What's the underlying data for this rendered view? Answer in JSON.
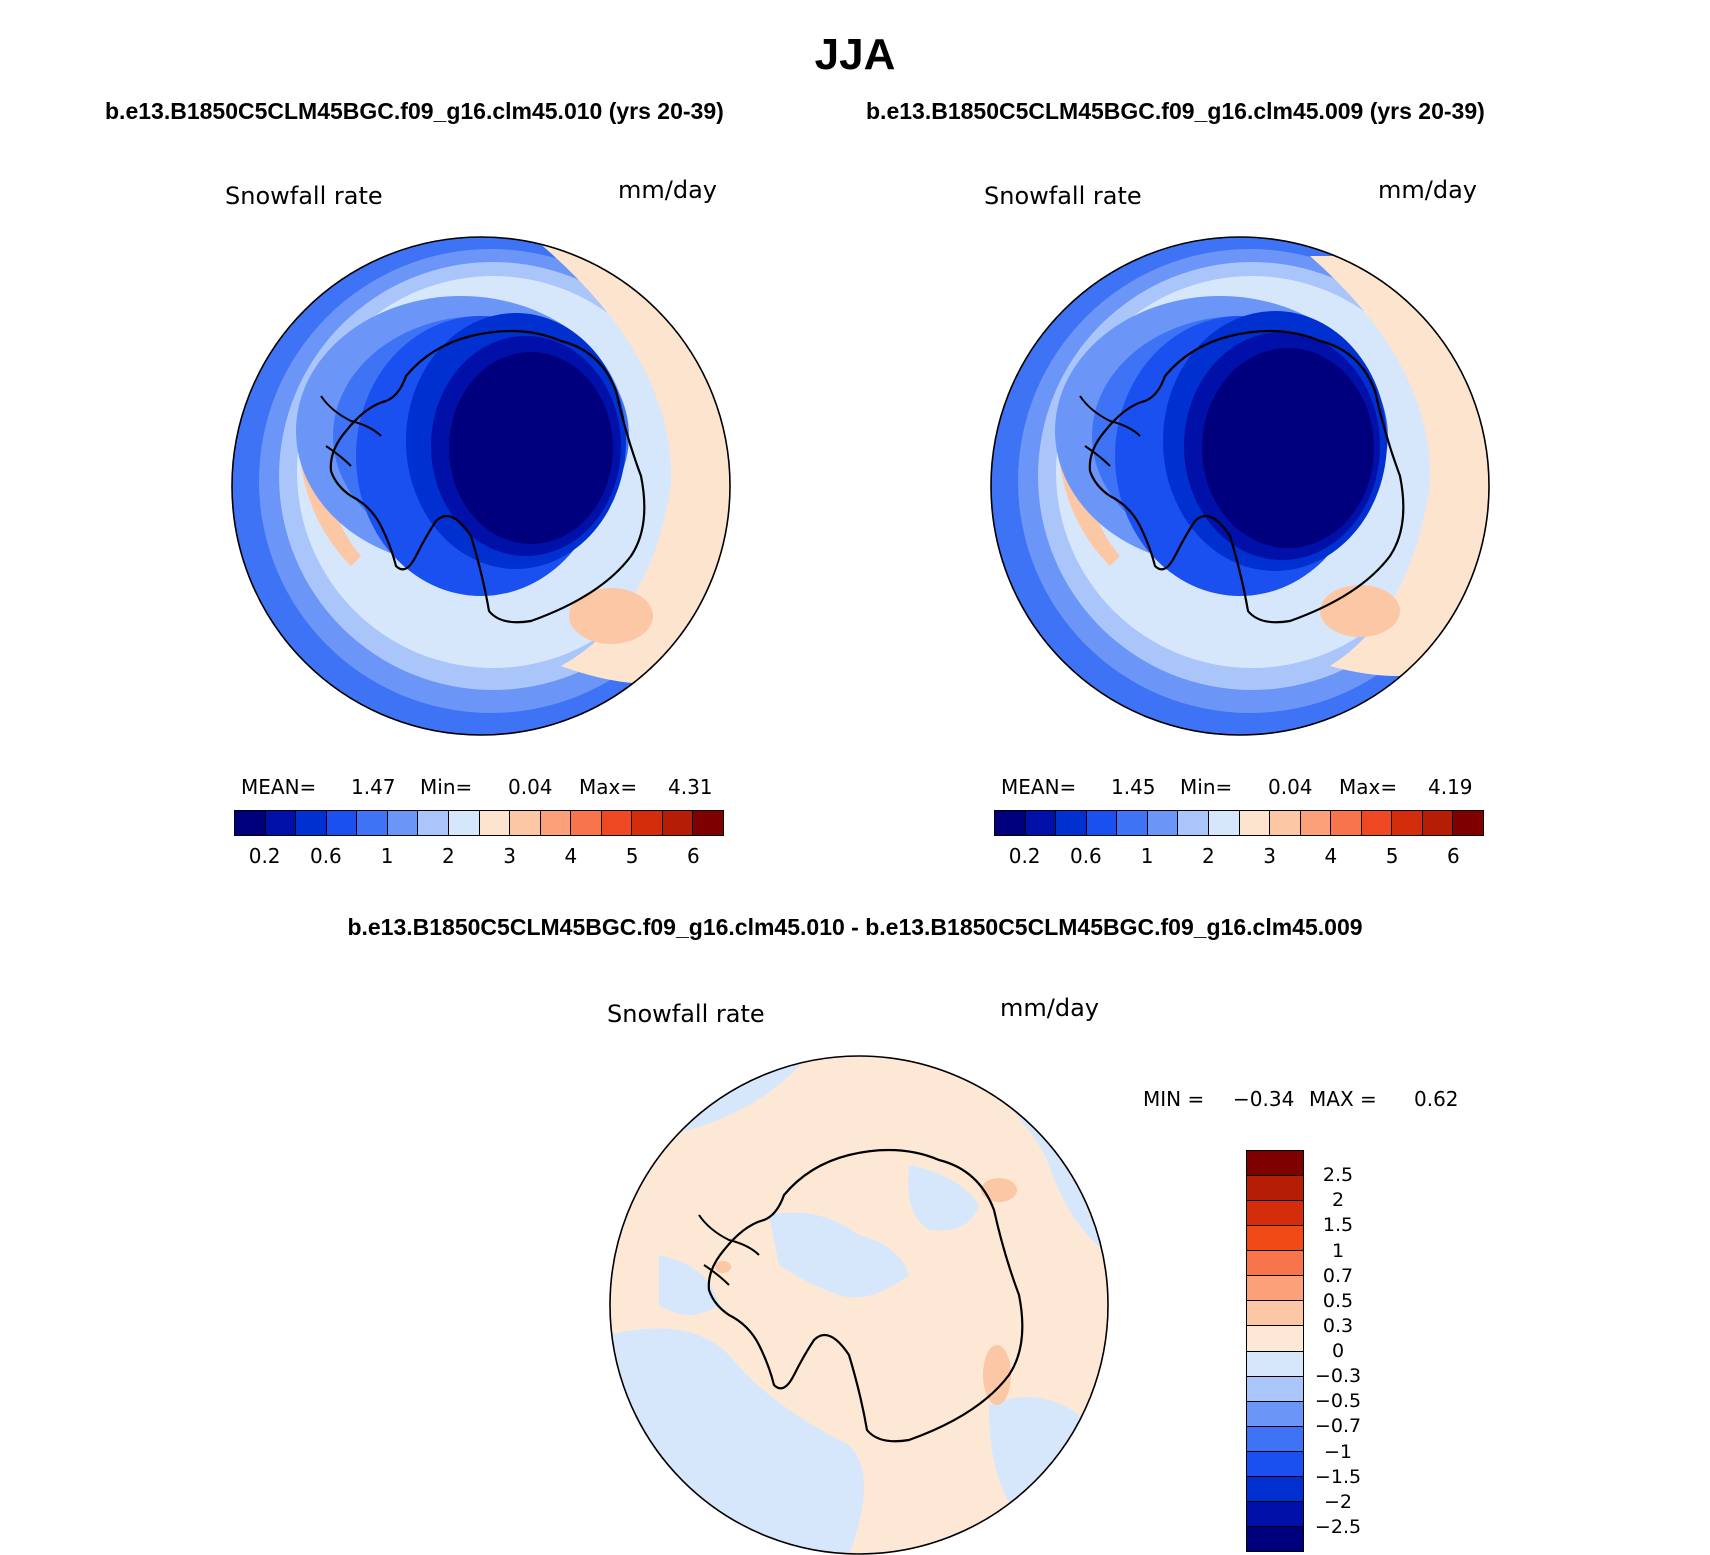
{
  "figure": {
    "title": "JJA",
    "subtitle_left": "b.e13.B1850C5CLM45BGC.f09_g16.clm45.010 (yrs 20-39)",
    "subtitle_right": "b.e13.B1850C5CLM45BGC.f09_g16.clm45.009 (yrs 20-39)",
    "diff_title": "b.e13.B1850C5CLM45BGC.f09_g16.clm45.010 - b.e13.B1850C5CLM45BGC.f09_g16.clm45.009"
  },
  "panels": [
    {
      "variable": "Snowfall rate",
      "units": "mm/day",
      "stats": {
        "mean_label": "MEAN=",
        "mean": "1.47",
        "min_label": "Min=",
        "min": "0.04",
        "max_label": "Max=",
        "max": "4.31"
      }
    },
    {
      "variable": "Snowfall rate",
      "units": "mm/day",
      "stats": {
        "mean_label": "MEAN=",
        "mean": "1.45",
        "min_label": "Min=",
        "min": "0.04",
        "max_label": "Max=",
        "max": "4.19"
      }
    },
    {
      "variable": "Snowfall rate",
      "units": "mm/day",
      "stats": {
        "min_label": "MIN =",
        "min": "−0.34",
        "max_label": "MAX =",
        "max": "0.62"
      }
    }
  ],
  "colorbar_main": {
    "colors": [
      "#00007f",
      "#0010a8",
      "#0030d0",
      "#1a50f0",
      "#3f73f5",
      "#6b96f7",
      "#a9c5fa",
      "#d6e7fc",
      "#fde4cf",
      "#fcc7a5",
      "#fba078",
      "#f8744a",
      "#ef4923",
      "#d42d0c",
      "#b51d05",
      "#7f0000"
    ],
    "ticks": [
      "0.2",
      "0.6",
      "1",
      "2",
      "3",
      "4",
      "5",
      "6"
    ]
  },
  "colorbar_diff": {
    "colors": [
      "#7f0000",
      "#b51d05",
      "#d42d0c",
      "#f04a16",
      "#f8744a",
      "#fba078",
      "#fcc7a5",
      "#fde8d6",
      "#d6e7fc",
      "#a9c5fa",
      "#6b96f7",
      "#3f73f5",
      "#1a50f0",
      "#0030d0",
      "#0010a8",
      "#00007f"
    ],
    "ticks": [
      "2.5",
      "2",
      "1.5",
      "1",
      "0.7",
      "0.5",
      "0.3",
      "0",
      "−0.3",
      "−0.5",
      "−0.7",
      "−1",
      "−1.5",
      "−2",
      "−2.5"
    ]
  }
}
